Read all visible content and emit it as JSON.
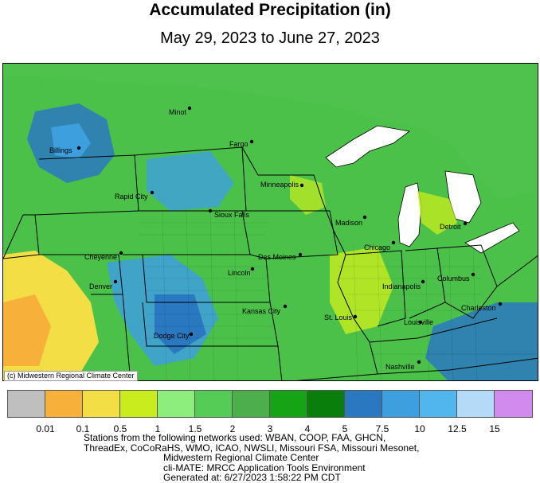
{
  "header": {
    "title": "Accumulated Precipitation (in)",
    "subtitle": "May 29, 2023 to June 27, 2023"
  },
  "map": {
    "credit": "(c) Midwestern Regional Climate Center",
    "cities": [
      {
        "name": "Minot"
      },
      {
        "name": "Billings"
      },
      {
        "name": "Fargo"
      },
      {
        "name": "Rapid City"
      },
      {
        "name": "Minneapolis"
      },
      {
        "name": "Sioux Falls"
      },
      {
        "name": "Madison"
      },
      {
        "name": "Detroit"
      },
      {
        "name": "Cheyenne"
      },
      {
        "name": "Des Moines"
      },
      {
        "name": "Chicago"
      },
      {
        "name": "Lincoln"
      },
      {
        "name": "Columbus"
      },
      {
        "name": "Denver"
      },
      {
        "name": "Indianapolis"
      },
      {
        "name": "Kansas City"
      },
      {
        "name": "Charleston"
      },
      {
        "name": "St. Louis"
      },
      {
        "name": "Louisville"
      },
      {
        "name": "Dodge City"
      },
      {
        "name": "Nashville"
      }
    ]
  },
  "legend": {
    "colors": [
      "#bfbfbf",
      "#f7b13a",
      "#f3de46",
      "#c9ec1e",
      "#8ded7d",
      "#55cc55",
      "#4caf4c",
      "#16a416",
      "#0a7e0a",
      "#2a78c0",
      "#3e9fde",
      "#52b6ee",
      "#b5daf8",
      "#d18aee"
    ],
    "labels": [
      "0.01",
      "0.1",
      "0.5",
      "1",
      "1.5",
      "2",
      "3",
      "4",
      "5",
      "7.5",
      "10",
      "12.5",
      "15"
    ]
  },
  "notes": {
    "line1": "Stations from the following networks used: WBAN, COOP, FAA, GHCN,",
    "line2": "ThreadEx, CoCoRaHS, WMO, ICAO, NWSLI, Missouri FSA, Missouri Mesonet,",
    "line3": "Midwestern Regional Climate Center",
    "line4": "cli-MATE: MRCC Application Tools Environment",
    "line5": "Generated at: 6/27/2023 1:58:22 PM CDT"
  }
}
